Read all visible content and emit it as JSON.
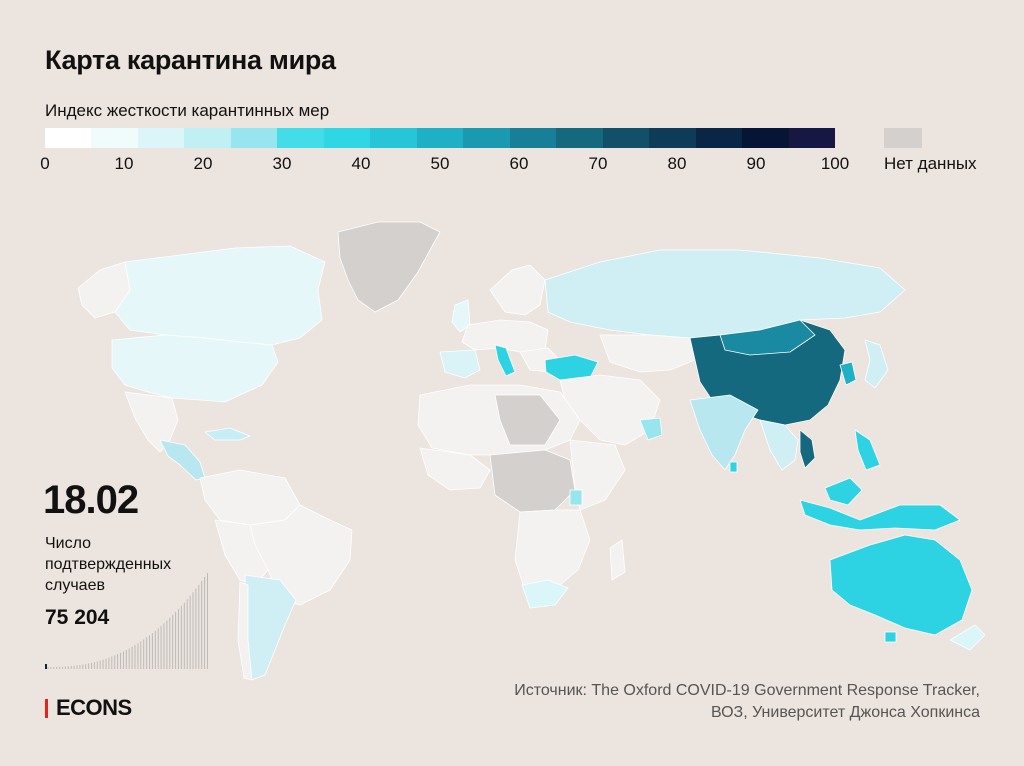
{
  "title": "Карта карантина мира",
  "legend": {
    "label": "Индекс жесткости карантинных мер",
    "ticks": [
      "0",
      "10",
      "20",
      "30",
      "40",
      "50",
      "60",
      "70",
      "80",
      "90",
      "100"
    ],
    "colors": [
      "#ffffff",
      "#f0fbfc",
      "#daf6f9",
      "#c0eff4",
      "#97e6ef",
      "#42dde9",
      "#2fd6e4",
      "#26c6d8",
      "#1fb0c6",
      "#1a9ab1",
      "#187f98",
      "#15697f",
      "#115068",
      "#0d3b58",
      "#0a2647",
      "#061435",
      "#171744"
    ],
    "nodata_label": "Нет данных",
    "nodata_color": "#d4d0cd"
  },
  "date": "18.02",
  "cases": {
    "label": "Число подтвержденных случаев",
    "value": "75 204"
  },
  "logo": {
    "text": "ECONS",
    "accent": "#e0261d"
  },
  "source": {
    "line1": "Источник: The Oxford COVID-19 Government Response Tracker,",
    "line2": "ВОЗ, Университет Джонса Хопкинса"
  }
}
